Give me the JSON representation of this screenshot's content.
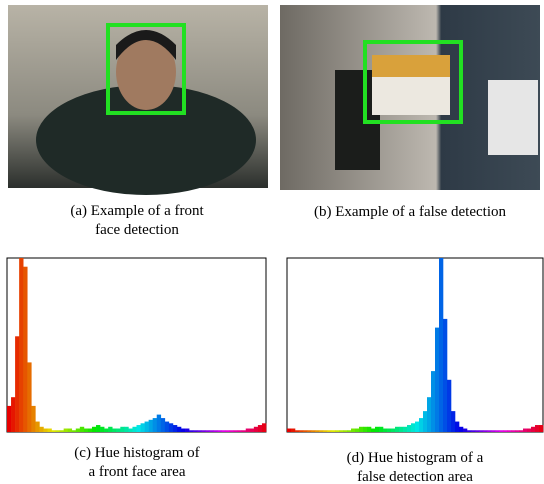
{
  "images": [
    {
      "caption": [
        "(a) Example of a front",
        "face detection"
      ]
    },
    {
      "caption": [
        "(b) Example of a false detection"
      ]
    }
  ],
  "chart_data": [
    {
      "type": "bar",
      "caption": [
        "(c) Hue histogram of",
        "a front face area"
      ],
      "ylim": [
        0,
        100
      ],
      "values": [
        15,
        20,
        55,
        100,
        95,
        40,
        15,
        6,
        3,
        2,
        2,
        1,
        1,
        1,
        2,
        2,
        1,
        2,
        3,
        2,
        2,
        3,
        4,
        3,
        2,
        3,
        2,
        2,
        3,
        3,
        2,
        3,
        4,
        5,
        6,
        7,
        8,
        10,
        8,
        6,
        5,
        4,
        3,
        2,
        2,
        1,
        1,
        1,
        1,
        1,
        1,
        1,
        1,
        1,
        1,
        1,
        1,
        1,
        1,
        2,
        2,
        3,
        4,
        5
      ]
    },
    {
      "type": "bar",
      "caption": [
        "(d) Hue histogram of a",
        "false detection area"
      ],
      "ylim": [
        0,
        100
      ],
      "values": [
        2,
        2,
        1,
        1,
        1,
        1,
        1,
        1,
        1,
        1,
        1,
        1,
        1,
        1,
        1,
        1,
        2,
        2,
        3,
        3,
        3,
        2,
        3,
        3,
        2,
        2,
        2,
        3,
        3,
        3,
        4,
        5,
        6,
        8,
        12,
        20,
        35,
        60,
        100,
        65,
        30,
        12,
        6,
        3,
        2,
        1,
        1,
        1,
        1,
        1,
        1,
        1,
        1,
        1,
        1,
        1,
        1,
        1,
        1,
        2,
        2,
        3,
        4,
        4
      ]
    }
  ]
}
